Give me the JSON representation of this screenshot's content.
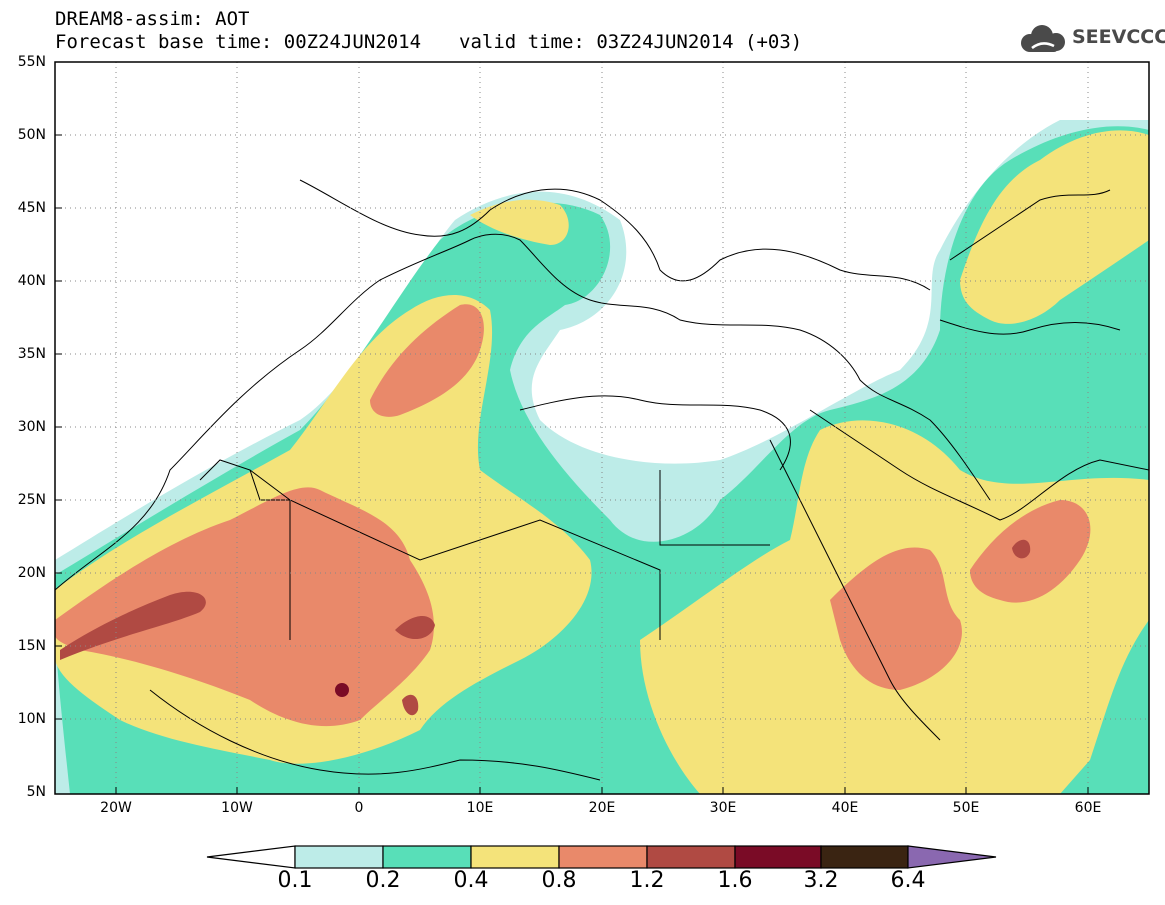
{
  "header": {
    "title_line1": "DREAM8-assim: AOT",
    "base_time": "Forecast base time: 00Z24JUN2014",
    "valid_time": "valid time: 03Z24JUN2014 (+03)",
    "logo_text": "SEEVCCC"
  },
  "map": {
    "variable": "AOT",
    "lon_range": [
      -25,
      65
    ],
    "lat_range": [
      5,
      55
    ],
    "grid": "dotted",
    "lat_ticks": [
      "55N",
      "50N",
      "45N",
      "40N",
      "35N",
      "30N",
      "25N",
      "20N",
      "15N",
      "10N",
      "5N"
    ],
    "lon_ticks": [
      "20W",
      "10W",
      "0",
      "10E",
      "20E",
      "30E",
      "40E",
      "50E",
      "60E"
    ]
  },
  "colorbar": {
    "labels": [
      "0.1",
      "0.2",
      "0.4",
      "0.8",
      "1.2",
      "1.6",
      "3.2",
      "6.4"
    ],
    "colors": [
      "#ffffff",
      "#bdece8",
      "#58dfb8",
      "#f4e37a",
      "#e9896a",
      "#b04a43",
      "#7a0b26",
      "#3a2412",
      "#8a68b0"
    ]
  }
}
